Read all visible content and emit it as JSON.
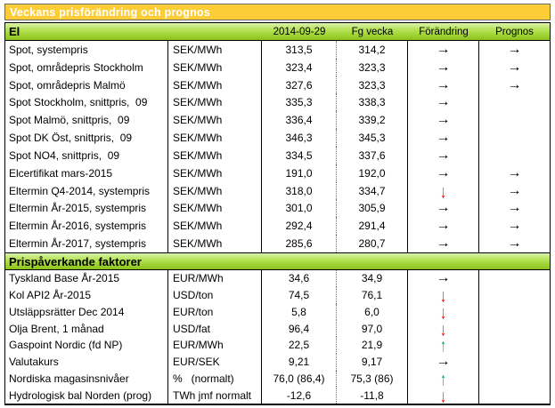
{
  "title_bar": {
    "text": "Veckans prisförändring och prognos"
  },
  "column_headers": {
    "current": "2014-09-29",
    "previous": "Fg vecka",
    "change": "Förändring",
    "forecast": "Prognos"
  },
  "sections": [
    {
      "header": "El",
      "rows": [
        {
          "label": "Spot, systempris",
          "unit": "SEK/MWh",
          "current": "313,5",
          "previous": "314,2",
          "change": "right",
          "forecast": "right"
        },
        {
          "label": "Spot, områdepris Stockholm",
          "unit": "SEK/MWh",
          "current": "323,4",
          "previous": "323,3",
          "change": "right",
          "forecast": "right"
        },
        {
          "label": "Spot, områdepris Malmö",
          "unit": "SEK/MWh",
          "current": "327,6",
          "previous": "323,3",
          "change": "right",
          "forecast": "right"
        },
        {
          "label": "Spot Stockholm, snittpris,  09",
          "unit": "SEK/MWh",
          "current": "335,3",
          "previous": "338,3",
          "change": "right",
          "forecast": ""
        },
        {
          "label": "Spot Malmö, snittpris,  09",
          "unit": "SEK/MWh",
          "current": "336,4",
          "previous": "339,2",
          "change": "right",
          "forecast": ""
        },
        {
          "label": "Spot DK Öst, snittpris,  09",
          "unit": "SEK/MWh",
          "current": "346,3",
          "previous": "345,3",
          "change": "right",
          "forecast": ""
        },
        {
          "label": "Spot NO4, snittpris,  09",
          "unit": "SEK/MWh",
          "current": "334,5",
          "previous": "337,6",
          "change": "right",
          "forecast": ""
        },
        {
          "label": "Elcertifikat mars-2015",
          "unit": "SEK/MWh",
          "current": "191,0",
          "previous": "192,0",
          "change": "right",
          "forecast": "right"
        },
        {
          "label": "Eltermin Q4-2014, systempris",
          "unit": "SEK/MWh",
          "current": "318,0",
          "previous": "334,7",
          "change": "down",
          "forecast": "right"
        },
        {
          "label": "Eltermin År-2015, systempris",
          "unit": "SEK/MWh",
          "current": "301,0",
          "previous": "305,9",
          "change": "right",
          "forecast": "right"
        },
        {
          "label": "Eltermin År-2016, systempris",
          "unit": "SEK/MWh",
          "current": "292,4",
          "previous": "291,4",
          "change": "right",
          "forecast": "right"
        },
        {
          "label": "Eltermin År-2017, systempris",
          "unit": "SEK/MWh",
          "current": "285,6",
          "previous": "280,7",
          "change": "right",
          "forecast": "right"
        }
      ]
    },
    {
      "header": "Prispåverkande faktorer",
      "rows": [
        {
          "label": "Tyskland Base År-2015",
          "unit": "EUR/MWh",
          "current": "34,6",
          "previous": "34,9",
          "change": "right",
          "forecast": ""
        },
        {
          "label": "Kol API2 År-2015",
          "unit": "USD/ton",
          "current": "74,5",
          "previous": "76,1",
          "change": "down",
          "forecast": ""
        },
        {
          "label": "Utsläppsrätter Dec 2014",
          "unit": "EUR/ton",
          "current": "5,8",
          "previous": "6,0",
          "change": "down",
          "forecast": ""
        },
        {
          "label": "Olja Brent, 1 månad",
          "unit": "USD/fat",
          "current": "96,4",
          "previous": "97,0",
          "change": "down",
          "forecast": ""
        },
        {
          "label": "Gaspoint Nordic (fd NP)",
          "unit": "EUR/MWh",
          "current": "22,5",
          "previous": "21,9",
          "change": "up",
          "forecast": ""
        },
        {
          "label": "Valutakurs",
          "unit": "EUR/SEK",
          "current": "9,21",
          "previous": "9,17",
          "change": "right",
          "forecast": ""
        },
        {
          "label": "Nordiska magasinsnivåer",
          "unit": "%   (normalt)",
          "current": "76,0 (86,4)",
          "previous": "75,3 (86)",
          "change": "up",
          "forecast": ""
        },
        {
          "label": "Hydrologisk bal Norden (prog)",
          "unit": "TWh jmf normalt",
          "current": "-12,6",
          "previous": "-11,8",
          "change": "down",
          "forecast": ""
        }
      ]
    }
  ],
  "arrow_glyphs": {
    "right": "→",
    "down": "↓",
    "up": "↑"
  },
  "colors": {
    "title_bar_bg": "#FCCD37",
    "title_text": "#FFFFFF",
    "green_top": "#DCF2AC",
    "green_mid": "#B9E45E",
    "green_low": "#9ED331",
    "green_bottom": "#8CC01F",
    "arrow_right": "#000000",
    "arrow_down": "#FF0000",
    "arrow_up": "#00B050"
  }
}
